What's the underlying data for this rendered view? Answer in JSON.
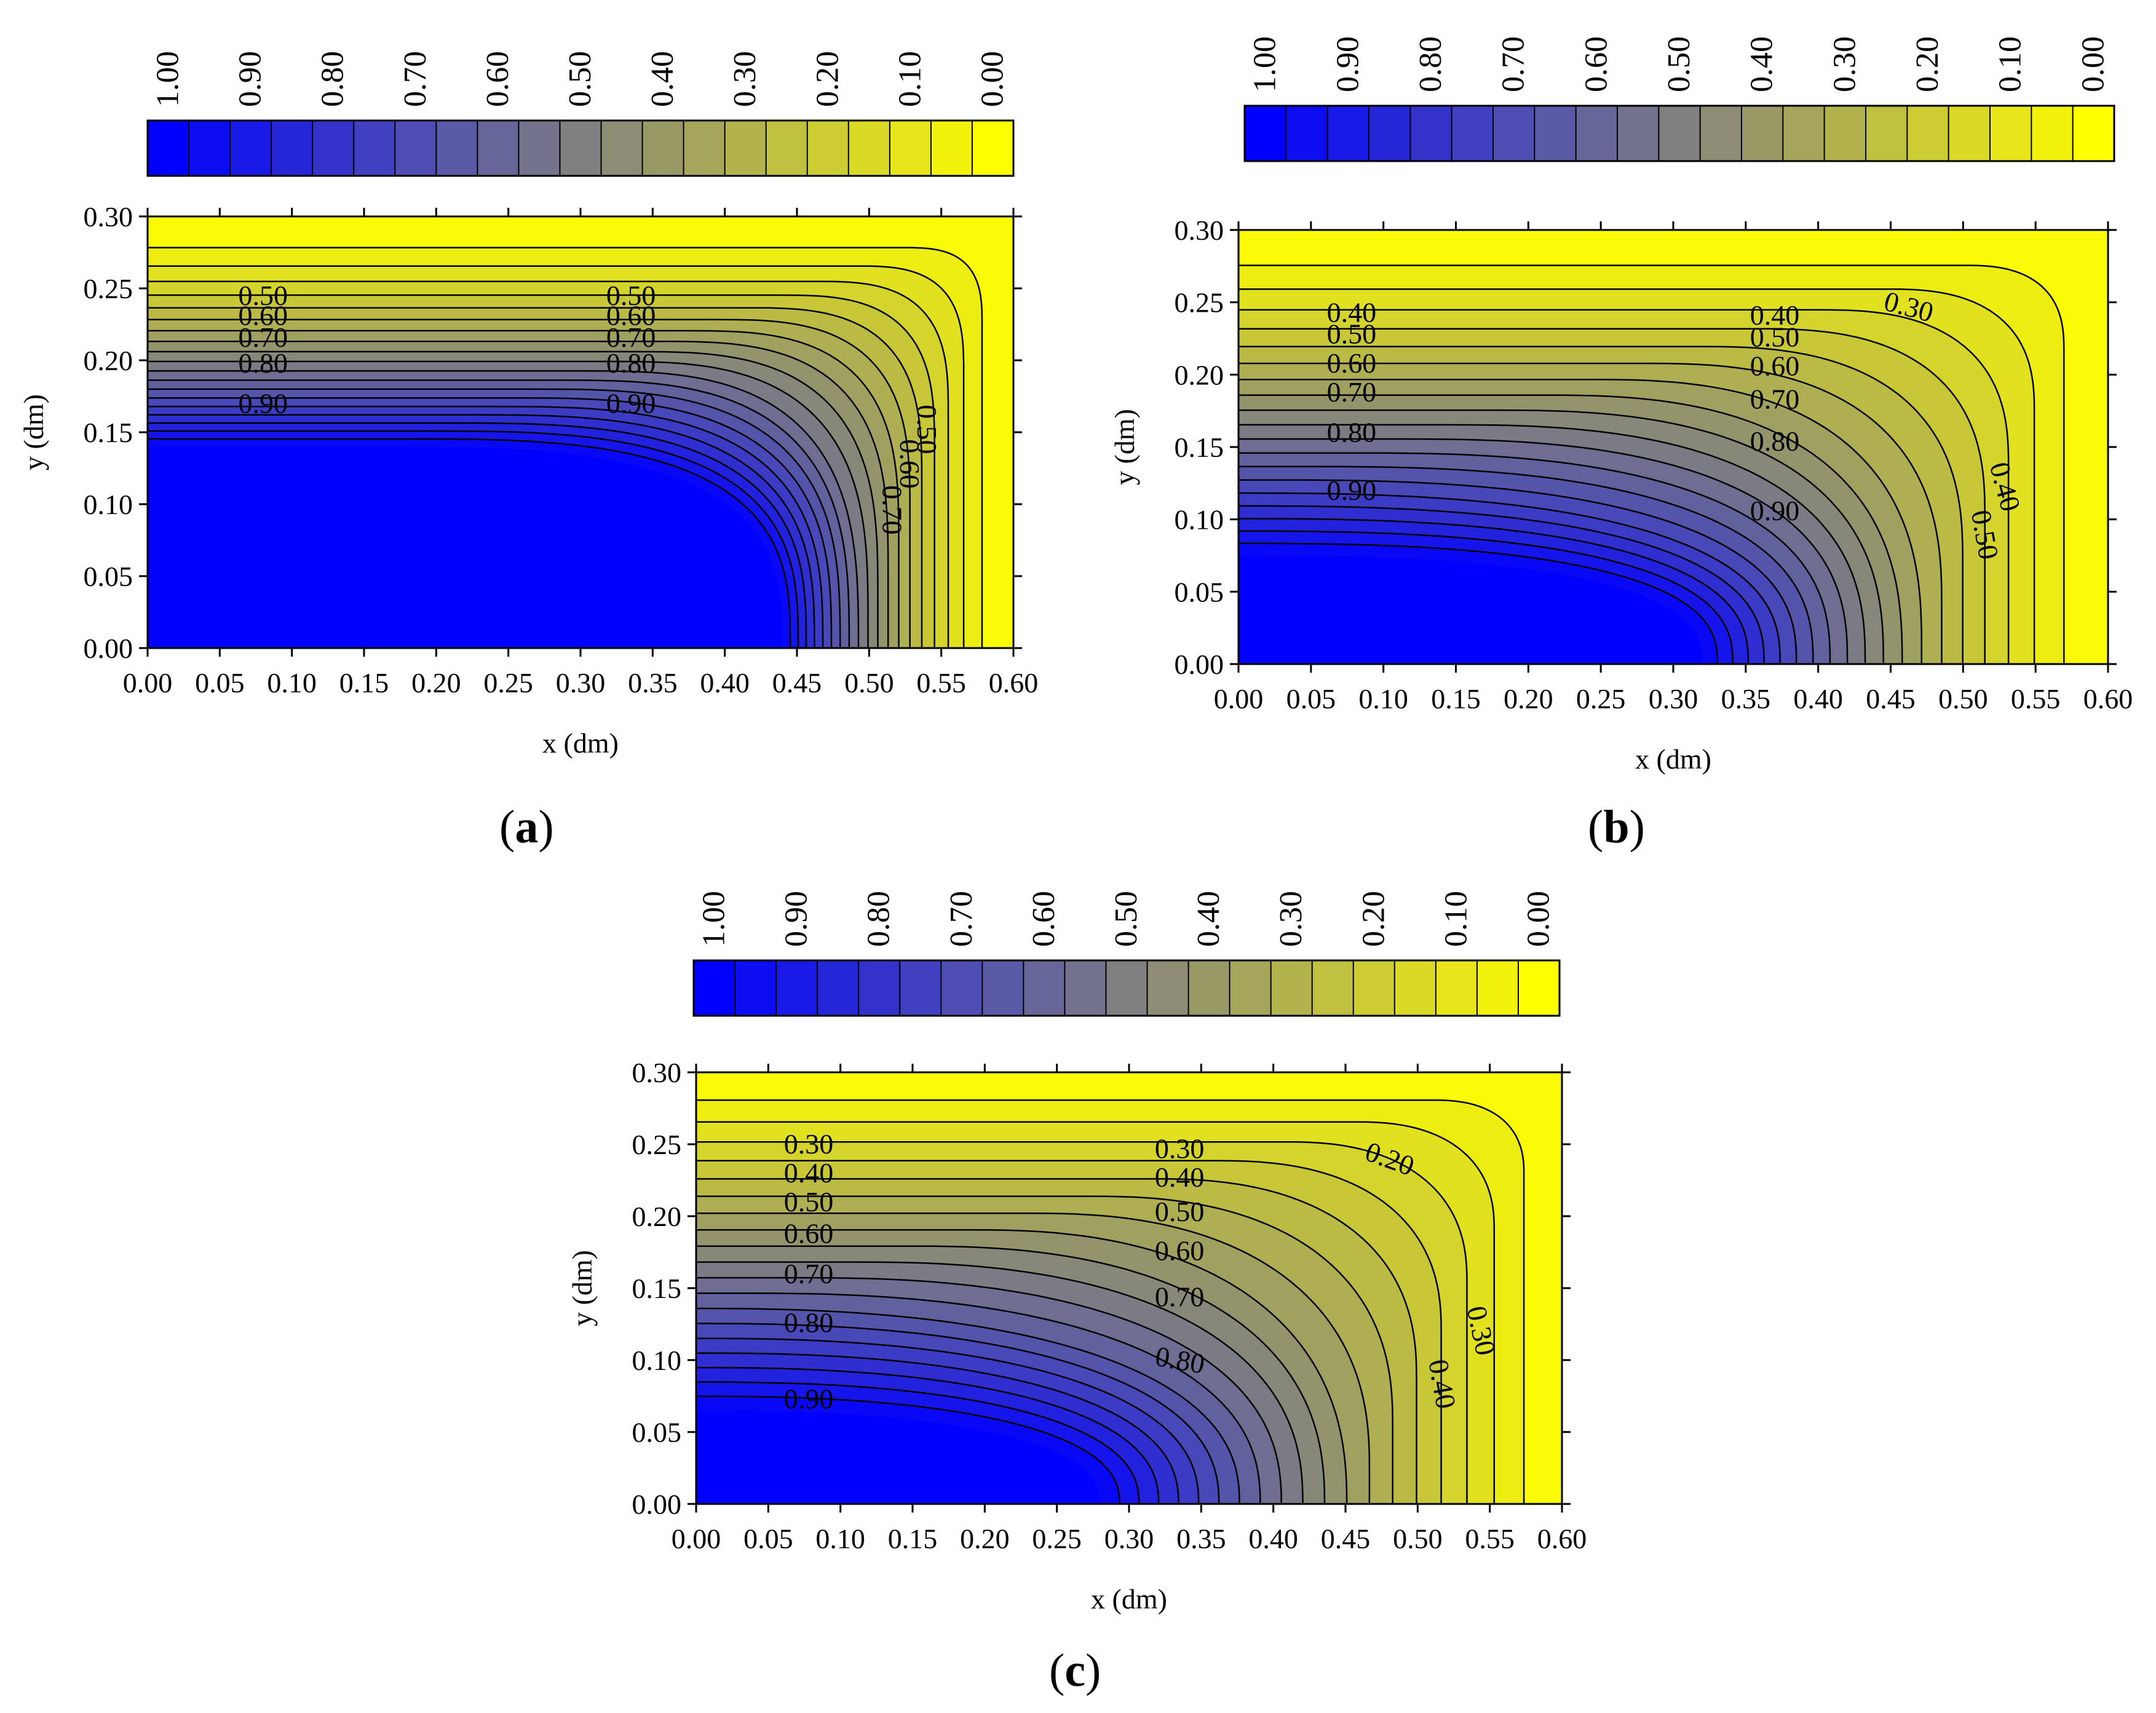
{
  "figure": {
    "colors": {
      "low": "#0000ff",
      "mid": "#808080",
      "high": "#ffff00",
      "line": "#000000"
    },
    "panel_labels": {
      "a": "a",
      "b": "b",
      "c": "c"
    },
    "paren_open": "(",
    "paren_close": ")"
  },
  "chart_data": [
    {
      "id": "a",
      "type": "heatmap",
      "subtype": "filled-contour",
      "xlabel": "x (dm)",
      "ylabel": "y (dm)",
      "xlim": [
        0,
        0.6
      ],
      "ylim": [
        0,
        0.3
      ],
      "xticks": [
        "0.00",
        "0.05",
        "0.10",
        "0.15",
        "0.20",
        "0.25",
        "0.30",
        "0.35",
        "0.40",
        "0.45",
        "0.50",
        "0.55",
        "0.60"
      ],
      "yticks": [
        "0.00",
        "0.05",
        "0.10",
        "0.15",
        "0.20",
        "0.25",
        "0.30"
      ],
      "colorbar": {
        "tick_labels": [
          "1.00",
          "0.90",
          "0.80",
          "0.70",
          "0.60",
          "0.50",
          "0.40",
          "0.30",
          "0.20",
          "0.10",
          "0.00"
        ],
        "range": [
          1.0,
          0.0
        ],
        "n_bins": 21
      },
      "field": {
        "interior_value": 1.0,
        "corner_x": 0.44,
        "corner_y": 0.14,
        "top_value": 0.0,
        "right_value": 0.0,
        "exponent": 1.5,
        "round_exponent": 3
      },
      "contour_labels": [
        {
          "text": "0.50",
          "x": 0.08,
          "y": 0.243
        },
        {
          "text": "0.60",
          "x": 0.08,
          "y": 0.229
        },
        {
          "text": "0.70",
          "x": 0.08,
          "y": 0.214
        },
        {
          "text": "0.80",
          "x": 0.08,
          "y": 0.196
        },
        {
          "text": "0.90",
          "x": 0.08,
          "y": 0.168
        },
        {
          "text": "0.50",
          "x": 0.335,
          "y": 0.243
        },
        {
          "text": "0.60",
          "x": 0.335,
          "y": 0.229
        },
        {
          "text": "0.70",
          "x": 0.335,
          "y": 0.214
        },
        {
          "text": "0.80",
          "x": 0.335,
          "y": 0.196
        },
        {
          "text": "0.90",
          "x": 0.335,
          "y": 0.168
        },
        {
          "text": "0.50",
          "x": 0.538,
          "y": 0.152,
          "rotate": 90
        },
        {
          "text": "0.60",
          "x": 0.526,
          "y": 0.128,
          "rotate": 90
        },
        {
          "text": "0.70",
          "x": 0.514,
          "y": 0.096,
          "rotate": 90
        }
      ]
    },
    {
      "id": "b",
      "type": "heatmap",
      "subtype": "filled-contour",
      "xlabel": "x (dm)",
      "ylabel": "y (dm)",
      "xlim": [
        0,
        0.6
      ],
      "ylim": [
        0,
        0.3
      ],
      "xticks": [
        "0.00",
        "0.05",
        "0.10",
        "0.15",
        "0.20",
        "0.25",
        "0.30",
        "0.35",
        "0.40",
        "0.45",
        "0.50",
        "0.55",
        "0.60"
      ],
      "yticks": [
        "0.00",
        "0.05",
        "0.10",
        "0.15",
        "0.20",
        "0.25",
        "0.30"
      ],
      "colorbar": {
        "tick_labels": [
          "1.00",
          "0.90",
          "0.80",
          "0.70",
          "0.60",
          "0.50",
          "0.40",
          "0.30",
          "0.20",
          "0.10",
          "0.00"
        ],
        "range": [
          1.0,
          0.0
        ],
        "n_bins": 21
      },
      "field": {
        "interior_value": 1.0,
        "corner_x": 0.32,
        "corner_y": 0.075,
        "top_value": 0.0,
        "right_value": 0.0,
        "exponent": 1.35,
        "round_exponent": 2.6
      },
      "contour_labels": [
        {
          "text": "0.40",
          "x": 0.078,
          "y": 0.241
        },
        {
          "text": "0.50",
          "x": 0.078,
          "y": 0.226
        },
        {
          "text": "0.60",
          "x": 0.078,
          "y": 0.206
        },
        {
          "text": "0.70",
          "x": 0.078,
          "y": 0.186
        },
        {
          "text": "0.80",
          "x": 0.078,
          "y": 0.158
        },
        {
          "text": "0.90",
          "x": 0.078,
          "y": 0.118
        },
        {
          "text": "0.40",
          "x": 0.37,
          "y": 0.239
        },
        {
          "text": "0.50",
          "x": 0.37,
          "y": 0.224
        },
        {
          "text": "0.60",
          "x": 0.37,
          "y": 0.204
        },
        {
          "text": "0.70",
          "x": 0.37,
          "y": 0.181
        },
        {
          "text": "0.80",
          "x": 0.37,
          "y": 0.152
        },
        {
          "text": "0.90",
          "x": 0.37,
          "y": 0.104
        },
        {
          "text": "0.30",
          "x": 0.462,
          "y": 0.245,
          "rotate": 15
        },
        {
          "text": "0.40",
          "x": 0.527,
          "y": 0.122,
          "rotate": 75
        },
        {
          "text": "0.50",
          "x": 0.513,
          "y": 0.089,
          "rotate": 80
        }
      ]
    },
    {
      "id": "c",
      "type": "heatmap",
      "subtype": "filled-contour",
      "xlabel": "x (dm)",
      "ylabel": "y (dm)",
      "xlim": [
        0,
        0.6
      ],
      "ylim": [
        0,
        0.3
      ],
      "xticks": [
        "0.00",
        "0.05",
        "0.10",
        "0.15",
        "0.20",
        "0.25",
        "0.30",
        "0.35",
        "0.40",
        "0.45",
        "0.50",
        "0.55",
        "0.60"
      ],
      "yticks": [
        "0.00",
        "0.05",
        "0.10",
        "0.15",
        "0.20",
        "0.25",
        "0.30"
      ],
      "colorbar": {
        "tick_labels": [
          "1.00",
          "0.90",
          "0.80",
          "0.70",
          "0.60",
          "0.50",
          "0.40",
          "0.30",
          "0.20",
          "0.10",
          "0.00"
        ],
        "range": [
          1.0,
          0.0
        ],
        "n_bins": 21
      },
      "field": {
        "interior_value": 1.0,
        "corner_x": 0.28,
        "corner_y": 0.065,
        "top_value": 0.0,
        "right_value": 0.0,
        "exponent": 1.2,
        "round_exponent": 2.4
      },
      "contour_labels": [
        {
          "text": "0.30",
          "x": 0.078,
          "y": 0.248
        },
        {
          "text": "0.40",
          "x": 0.078,
          "y": 0.228
        },
        {
          "text": "0.50",
          "x": 0.078,
          "y": 0.208
        },
        {
          "text": "0.60",
          "x": 0.078,
          "y": 0.186
        },
        {
          "text": "0.70",
          "x": 0.078,
          "y": 0.158
        },
        {
          "text": "0.80",
          "x": 0.078,
          "y": 0.124
        },
        {
          "text": "0.90",
          "x": 0.078,
          "y": 0.071
        },
        {
          "text": "0.30",
          "x": 0.335,
          "y": 0.245
        },
        {
          "text": "0.40",
          "x": 0.335,
          "y": 0.225
        },
        {
          "text": "0.50",
          "x": 0.335,
          "y": 0.201
        },
        {
          "text": "0.60",
          "x": 0.335,
          "y": 0.174
        },
        {
          "text": "0.70",
          "x": 0.335,
          "y": 0.142
        },
        {
          "text": "0.80",
          "x": 0.335,
          "y": 0.098,
          "rotate": 10
        },
        {
          "text": "0.20",
          "x": 0.48,
          "y": 0.238,
          "rotate": 20
        },
        {
          "text": "0.30",
          "x": 0.542,
          "y": 0.12,
          "rotate": 78
        },
        {
          "text": "0.40",
          "x": 0.515,
          "y": 0.083,
          "rotate": 80
        }
      ]
    }
  ]
}
